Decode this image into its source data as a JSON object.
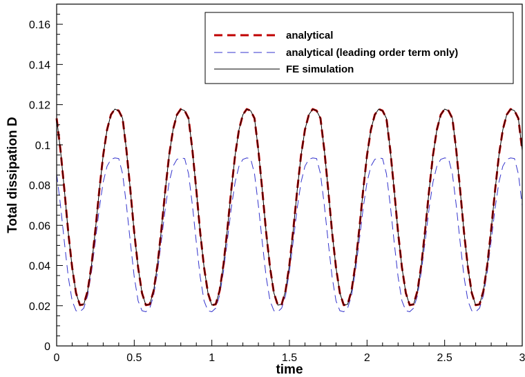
{
  "chart_data": {
    "type": "line",
    "title": "",
    "xlabel": "time",
    "ylabel": "Total dissipation D",
    "xlim": [
      0,
      3
    ],
    "ylim": [
      0,
      0.17
    ],
    "xticks": [
      "0",
      "0.5",
      "1",
      "1.5",
      "2",
      "2.5",
      "3"
    ],
    "yticks": [
      "0",
      "0.02",
      "0.04",
      "0.06",
      "0.08",
      "0.1",
      "0.12",
      "0.14",
      "0.16"
    ],
    "grid": false,
    "legend_position": "top-right",
    "series": [
      {
        "name": "analytical",
        "color": "#c00000",
        "style": "dashed-thick",
        "x": [
          0,
          0.025,
          0.05,
          0.075,
          0.1,
          0.125,
          0.15,
          0.175,
          0.2,
          0.225,
          0.25,
          0.275,
          0.3,
          0.325,
          0.35,
          0.375,
          0.4,
          0.425,
          0.45,
          0.475,
          0.5,
          0.525,
          0.55,
          0.575,
          0.6,
          0.625,
          0.65,
          0.675,
          0.7,
          0.725,
          0.75,
          0.775,
          0.8,
          0.825,
          0.85,
          0.875,
          0.9,
          0.925,
          0.95,
          0.975,
          1,
          1.025,
          1.05,
          1.075,
          1.1,
          1.125,
          1.15,
          1.175,
          1.2,
          1.225,
          1.25,
          1.275,
          1.3,
          1.325,
          1.35,
          1.375,
          1.4,
          1.425,
          1.45,
          1.475,
          1.5,
          1.525,
          1.55,
          1.575,
          1.6,
          1.625,
          1.65,
          1.675,
          1.7,
          1.725,
          1.75,
          1.775,
          1.8,
          1.825,
          1.85,
          1.875,
          1.9,
          1.925,
          1.95,
          1.975,
          2,
          2.025,
          2.05,
          2.075,
          2.1,
          2.125,
          2.15,
          2.175,
          2.2,
          2.225,
          2.25,
          2.275,
          2.3,
          2.325,
          2.35,
          2.375,
          2.4,
          2.425,
          2.45,
          2.475,
          2.5,
          2.525,
          2.55,
          2.575,
          2.6,
          2.625,
          2.65,
          2.675,
          2.7,
          2.725,
          2.75,
          2.775,
          2.8,
          2.825,
          2.85,
          2.875,
          2.9,
          2.925,
          2.95,
          2.975,
          3
        ],
        "y": [
          0.1132,
          0.0972,
          0.0775,
          0.0564,
          0.039,
          0.0263,
          0.0203,
          0.0207,
          0.0274,
          0.0404,
          0.058,
          0.0774,
          0.0949,
          0.1076,
          0.115,
          0.1178,
          0.117,
          0.1132,
          0.0972,
          0.0775,
          0.0564,
          0.039,
          0.0263,
          0.0203,
          0.0207,
          0.0274,
          0.0404,
          0.058,
          0.0774,
          0.0949,
          0.1076,
          0.115,
          0.1178,
          0.117,
          0.1132,
          0.0972,
          0.0775,
          0.0564,
          0.039,
          0.0263,
          0.0203,
          0.0207,
          0.0274,
          0.0404,
          0.058,
          0.0774,
          0.0949,
          0.1076,
          0.115,
          0.1178,
          0.117,
          0.1132,
          0.0972,
          0.0775,
          0.0564,
          0.039,
          0.0263,
          0.0203,
          0.0207,
          0.0274,
          0.0404,
          0.058,
          0.0774,
          0.0949,
          0.1076,
          0.115,
          0.1178,
          0.117,
          0.1132,
          0.0972,
          0.0775,
          0.0564,
          0.039,
          0.0263,
          0.0203,
          0.0207,
          0.0274,
          0.0404,
          0.058,
          0.0774,
          0.0949,
          0.1076,
          0.115,
          0.1178,
          0.117,
          0.1132,
          0.0972,
          0.0775,
          0.0564,
          0.039,
          0.0263,
          0.0203,
          0.0207,
          0.0274,
          0.0404,
          0.058,
          0.0774,
          0.0949,
          0.1076,
          0.115,
          0.1178,
          0.117,
          0.1132,
          0.0972,
          0.0775,
          0.0564,
          0.039,
          0.0263,
          0.0203,
          0.0207,
          0.0274,
          0.0404,
          0.058,
          0.0774,
          0.0949,
          0.1076,
          0.115,
          0.1178,
          0.117,
          0.1132,
          0.0972
        ]
      },
      {
        "name": "analytical (leading order term only)",
        "color": "#3333cc",
        "style": "dashed-thin",
        "x": [
          0,
          0.025,
          0.05,
          0.075,
          0.1,
          0.125,
          0.15,
          0.175,
          0.2,
          0.225,
          0.25,
          0.275,
          0.3,
          0.325,
          0.35,
          0.375,
          0.4,
          0.425,
          0.45,
          0.475,
          0.5,
          0.525,
          0.55,
          0.575,
          0.6,
          0.625,
          0.65,
          0.675,
          0.7,
          0.725,
          0.75,
          0.775,
          0.8,
          0.825,
          0.85,
          0.875,
          0.9,
          0.925,
          0.95,
          0.975,
          1,
          1.025,
          1.05,
          1.075,
          1.1,
          1.125,
          1.15,
          1.175,
          1.2,
          1.225,
          1.25,
          1.275,
          1.3,
          1.325,
          1.35,
          1.375,
          1.4,
          1.425,
          1.45,
          1.475,
          1.5,
          1.525,
          1.55,
          1.575,
          1.6,
          1.625,
          1.65,
          1.675,
          1.7,
          1.725,
          1.75,
          1.775,
          1.8,
          1.825,
          1.85,
          1.875,
          1.9,
          1.925,
          1.95,
          1.975,
          2,
          2.025,
          2.05,
          2.075,
          2.1,
          2.125,
          2.15,
          2.175,
          2.2,
          2.225,
          2.25,
          2.275,
          2.3,
          2.325,
          2.35,
          2.375,
          2.4,
          2.425,
          2.45,
          2.475,
          2.5,
          2.525,
          2.55,
          2.575,
          2.6,
          2.625,
          2.65,
          2.675,
          2.7,
          2.725,
          2.75,
          2.775,
          2.8,
          2.825,
          2.85,
          2.875,
          2.9,
          2.925,
          2.95,
          2.975,
          3
        ],
        "y": [
          0.0856,
          0.0698,
          0.0515,
          0.0343,
          0.0224,
          0.0175,
          0.017,
          0.0188,
          0.0251,
          0.037,
          0.0525,
          0.0685,
          0.0815,
          0.0894,
          0.0928,
          0.0935,
          0.0932,
          0.0856,
          0.0698,
          0.0515,
          0.0343,
          0.0224,
          0.0175,
          0.017,
          0.0188,
          0.0251,
          0.037,
          0.0525,
          0.0685,
          0.0815,
          0.0894,
          0.0928,
          0.0935,
          0.0932,
          0.0856,
          0.0698,
          0.0515,
          0.0343,
          0.0224,
          0.0175,
          0.017,
          0.0188,
          0.0251,
          0.037,
          0.0525,
          0.0685,
          0.0815,
          0.0894,
          0.0928,
          0.0935,
          0.0932,
          0.0856,
          0.0698,
          0.0515,
          0.0343,
          0.0224,
          0.0175,
          0.017,
          0.0188,
          0.0251,
          0.037,
          0.0525,
          0.0685,
          0.0815,
          0.0894,
          0.0928,
          0.0935,
          0.0932,
          0.0856,
          0.0698,
          0.0515,
          0.0343,
          0.0224,
          0.0175,
          0.017,
          0.0188,
          0.0251,
          0.037,
          0.0525,
          0.0685,
          0.0815,
          0.0894,
          0.0928,
          0.0935,
          0.0932,
          0.0856,
          0.0698,
          0.0515,
          0.0343,
          0.0224,
          0.0175,
          0.017,
          0.0188,
          0.0251,
          0.037,
          0.0525,
          0.0685,
          0.0815,
          0.0894,
          0.0928,
          0.0935,
          0.0932,
          0.0856,
          0.0698,
          0.0515,
          0.0343,
          0.0224,
          0.0175,
          0.017,
          0.0188,
          0.0251,
          0.037,
          0.0525,
          0.0685,
          0.0815,
          0.0894,
          0.0928,
          0.0935,
          0.0932,
          0.0856,
          0.0698
        ]
      },
      {
        "name": "FE simulation",
        "color": "#000000",
        "style": "solid",
        "x": [
          0,
          0.025,
          0.05,
          0.075,
          0.1,
          0.125,
          0.15,
          0.175,
          0.2,
          0.225,
          0.25,
          0.275,
          0.3,
          0.325,
          0.35,
          0.375,
          0.4,
          0.425,
          0.45,
          0.475,
          0.5,
          0.525,
          0.55,
          0.575,
          0.6,
          0.625,
          0.65,
          0.675,
          0.7,
          0.725,
          0.75,
          0.775,
          0.8,
          0.825,
          0.85,
          0.875,
          0.9,
          0.925,
          0.95,
          0.975,
          1,
          1.025,
          1.05,
          1.075,
          1.1,
          1.125,
          1.15,
          1.175,
          1.2,
          1.225,
          1.25,
          1.275,
          1.3,
          1.325,
          1.35,
          1.375,
          1.4,
          1.425,
          1.45,
          1.475,
          1.5,
          1.525,
          1.55,
          1.575,
          1.6,
          1.625,
          1.65,
          1.675,
          1.7,
          1.725,
          1.75,
          1.775,
          1.8,
          1.825,
          1.85,
          1.875,
          1.9,
          1.925,
          1.95,
          1.975,
          2,
          2.025,
          2.05,
          2.075,
          2.1,
          2.125,
          2.15,
          2.175,
          2.2,
          2.225,
          2.25,
          2.275,
          2.3,
          2.325,
          2.35,
          2.375,
          2.4,
          2.425,
          2.45,
          2.475,
          2.5,
          2.525,
          2.55,
          2.575,
          2.6,
          2.625,
          2.65,
          2.675,
          2.7,
          2.725,
          2.75,
          2.775,
          2.8,
          2.825,
          2.85,
          2.875,
          2.9,
          2.925,
          2.95,
          2.975,
          3
        ],
        "y": [
          0.1132,
          0.0972,
          0.0775,
          0.0564,
          0.039,
          0.0263,
          0.0203,
          0.0207,
          0.0274,
          0.0404,
          0.058,
          0.0774,
          0.0949,
          0.1076,
          0.115,
          0.1178,
          0.117,
          0.1132,
          0.0972,
          0.0775,
          0.0564,
          0.039,
          0.0263,
          0.0203,
          0.0207,
          0.0274,
          0.0404,
          0.058,
          0.0774,
          0.0949,
          0.1076,
          0.115,
          0.1178,
          0.117,
          0.1132,
          0.0972,
          0.0775,
          0.0564,
          0.039,
          0.0263,
          0.0203,
          0.0207,
          0.0274,
          0.0404,
          0.058,
          0.0774,
          0.0949,
          0.1076,
          0.115,
          0.1178,
          0.117,
          0.1132,
          0.0972,
          0.0775,
          0.0564,
          0.039,
          0.0263,
          0.0203,
          0.0207,
          0.0274,
          0.0404,
          0.058,
          0.0774,
          0.0949,
          0.1076,
          0.115,
          0.1178,
          0.117,
          0.1132,
          0.0972,
          0.0775,
          0.0564,
          0.039,
          0.0263,
          0.0203,
          0.0207,
          0.0274,
          0.0404,
          0.058,
          0.0774,
          0.0949,
          0.1076,
          0.115,
          0.1178,
          0.117,
          0.1132,
          0.0972,
          0.0775,
          0.0564,
          0.039,
          0.0263,
          0.0203,
          0.0207,
          0.0274,
          0.0404,
          0.058,
          0.0774,
          0.0949,
          0.1076,
          0.115,
          0.1178,
          0.117,
          0.1132,
          0.0972,
          0.0775,
          0.0564,
          0.039,
          0.0263,
          0.0203,
          0.0207,
          0.0274,
          0.0404,
          0.058,
          0.0774,
          0.0949,
          0.1076,
          0.115,
          0.1178,
          0.117,
          0.1132,
          0.0972
        ]
      }
    ]
  }
}
